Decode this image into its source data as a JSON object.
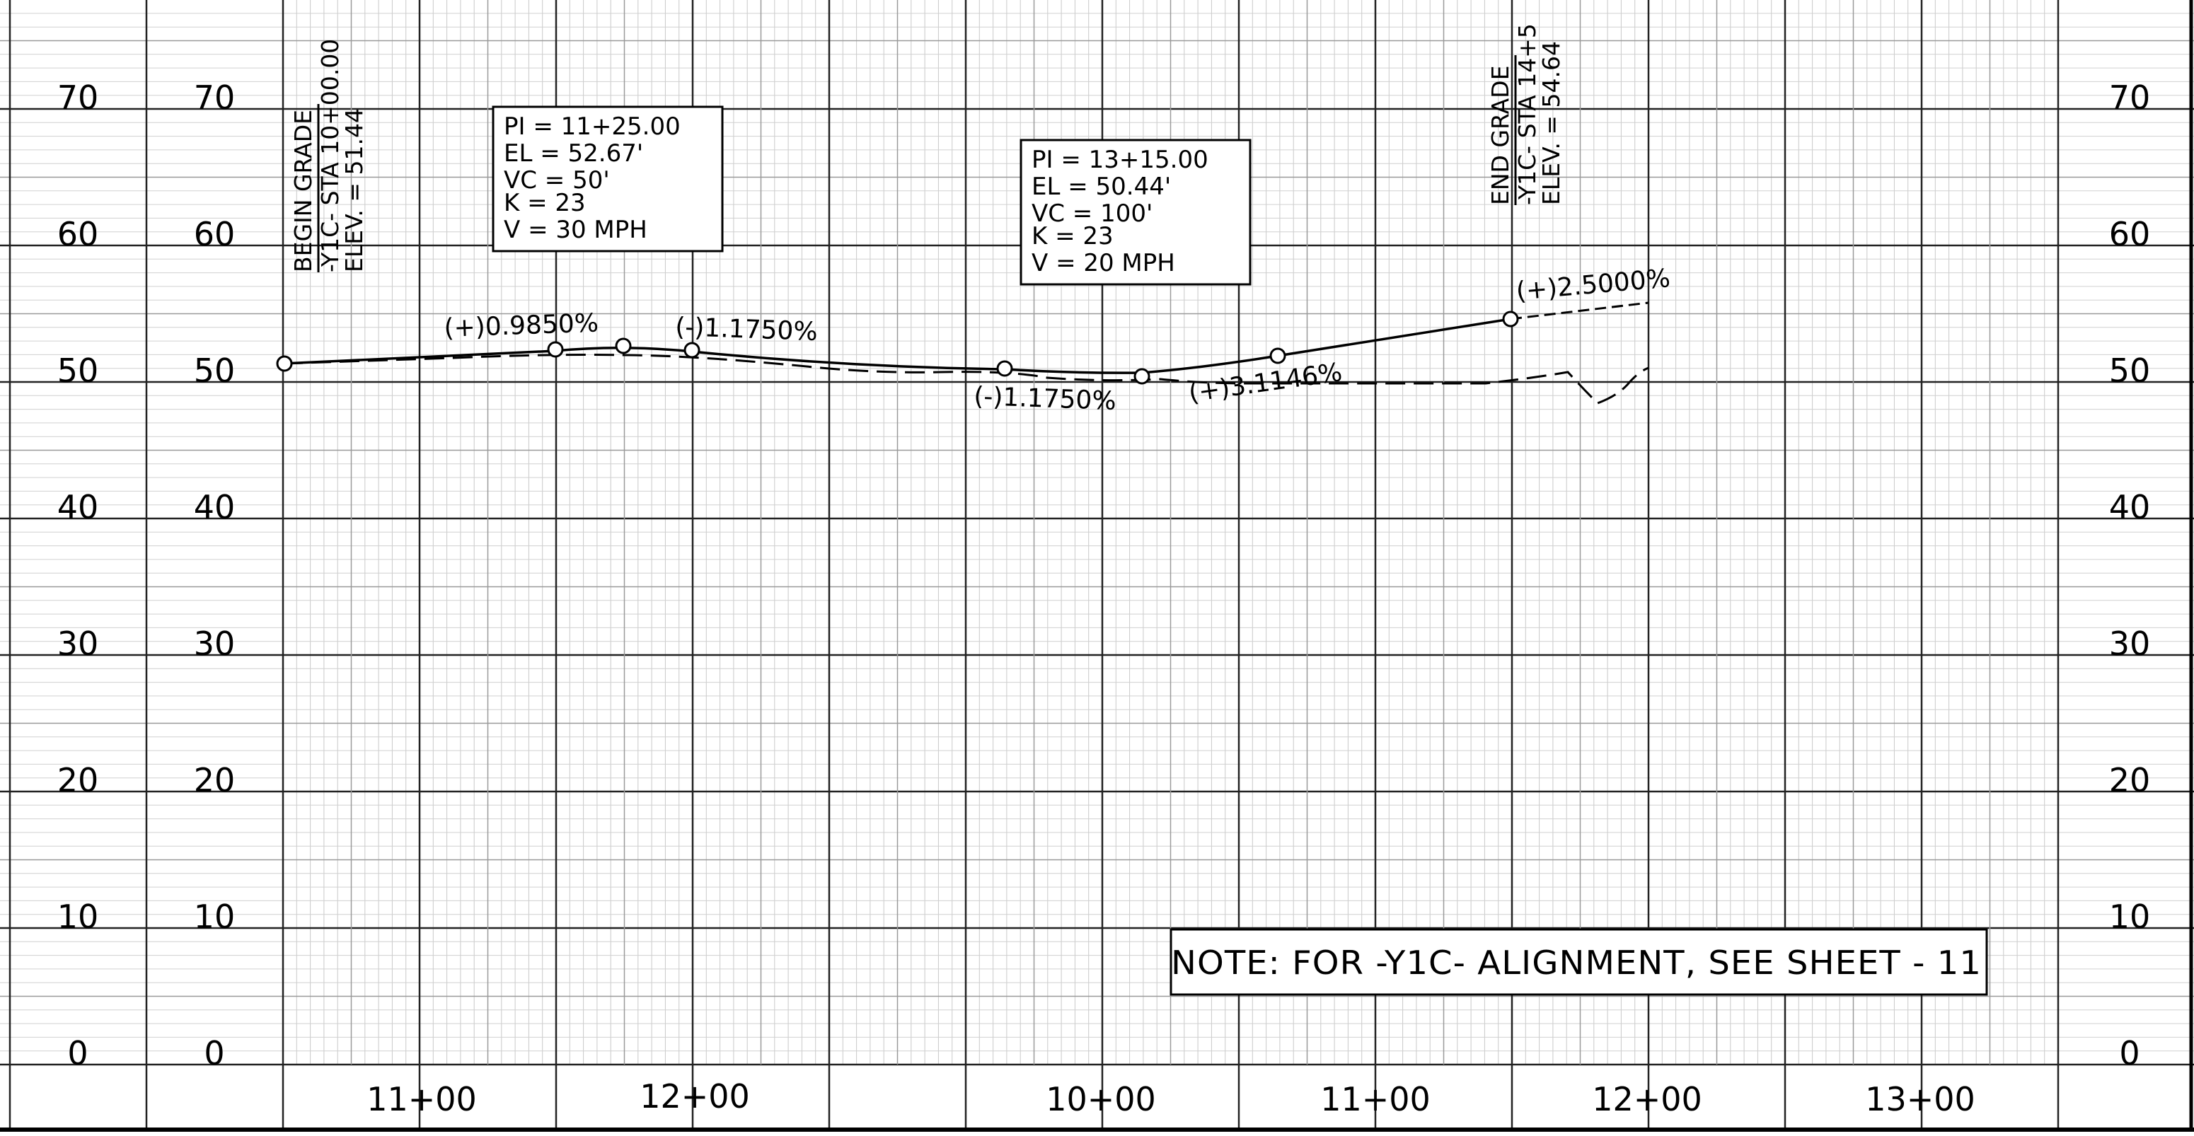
{
  "elevation_scale": {
    "left_outer": [
      "70",
      "60",
      "50",
      "40",
      "30",
      "20",
      "10",
      "0"
    ],
    "left_inner": [
      "70",
      "60",
      "50",
      "40",
      "30",
      "20",
      "10",
      "0"
    ],
    "right": [
      "70",
      "60",
      "50",
      "40",
      "30",
      "20",
      "10",
      "0"
    ]
  },
  "stations": [
    "11+00",
    "12+00",
    "10+00",
    "11+00",
    "12+00",
    "13+00"
  ],
  "begin_grade": {
    "line1": "BEGIN  GRADE",
    "line2": "-Y1C-  STA  10+00.00",
    "line3": "ELEV.  =     51.44"
  },
  "end_grade": {
    "line1": "END  GRADE",
    "line2": "-Y1C-  STA  14+5",
    "line3": "ELEV.  =     54.64"
  },
  "pi_box_1": {
    "pi": "PI  =    11+25.00",
    "el": "EL  =     52.67'",
    "vc": "VC   =    50'",
    "k": "K  =    23",
    "v": "V  =    30  MPH"
  },
  "pi_box_2": {
    "pi": "PI  =    13+15.00",
    "el": "EL  =     50.44'",
    "vc": "VC   =    100'",
    "k": "K  =    23",
    "v": "V  =    20  MPH"
  },
  "grades": {
    "g1": "(+)0.9850%",
    "g2": "(-)1.1750%",
    "g3": "(-)1.1750%",
    "g4": "(+)3.1146%",
    "g5": "(+)2.5000%"
  },
  "note": "NOTE: FOR  -Y1C-  ALIGNMENT, SEE  SHEET  - 11"
}
